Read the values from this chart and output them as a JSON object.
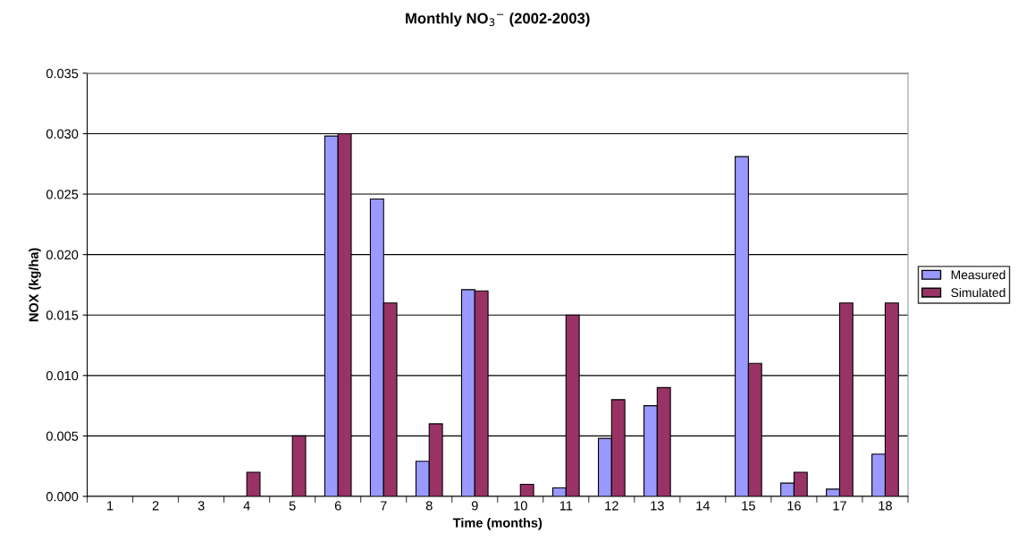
{
  "chart_data": {
    "type": "bar",
    "title": "Monthly NO$_{3}$$^{−}$ (2002-2003)",
    "xlabel": "Time (months)",
    "ylabel": "NOX (kg/ha)",
    "categories": [
      "1",
      "2",
      "3",
      "4",
      "5",
      "6",
      "7",
      "8",
      "9",
      "10",
      "11",
      "12",
      "13",
      "14",
      "15",
      "16",
      "17",
      "18"
    ],
    "series": [
      {
        "name": "Measured",
        "color": "#9999ff",
        "values": [
          0,
          0,
          0,
          0,
          0,
          0.0298,
          0.0246,
          0.0029,
          0.0171,
          0,
          0.0007,
          0.0048,
          0.0075,
          0,
          0.0281,
          0.0011,
          0.0006,
          0.0035
        ]
      },
      {
        "name": "Simulated",
        "color": "#993366",
        "values": [
          0,
          0,
          0,
          0.002,
          0.005,
          0.03,
          0.016,
          0.006,
          0.017,
          0.001,
          0.015,
          0.008,
          0.009,
          0,
          0.011,
          0.002,
          0.016,
          0.016
        ]
      }
    ],
    "ylim": [
      0,
      0.035
    ],
    "yticks": [
      {
        "value": 0,
        "label": "0.000"
      },
      {
        "value": 0.005,
        "label": "0.005"
      },
      {
        "value": 0.01,
        "label": "0.010"
      },
      {
        "value": 0.015,
        "label": "0.015"
      },
      {
        "value": 0.02,
        "label": "0.020"
      },
      {
        "value": 0.025,
        "label": "0.025"
      },
      {
        "value": 0.03,
        "label": "0.030"
      },
      {
        "value": 0.035,
        "label": "0.035"
      }
    ],
    "grid": "y",
    "legend": "right"
  }
}
